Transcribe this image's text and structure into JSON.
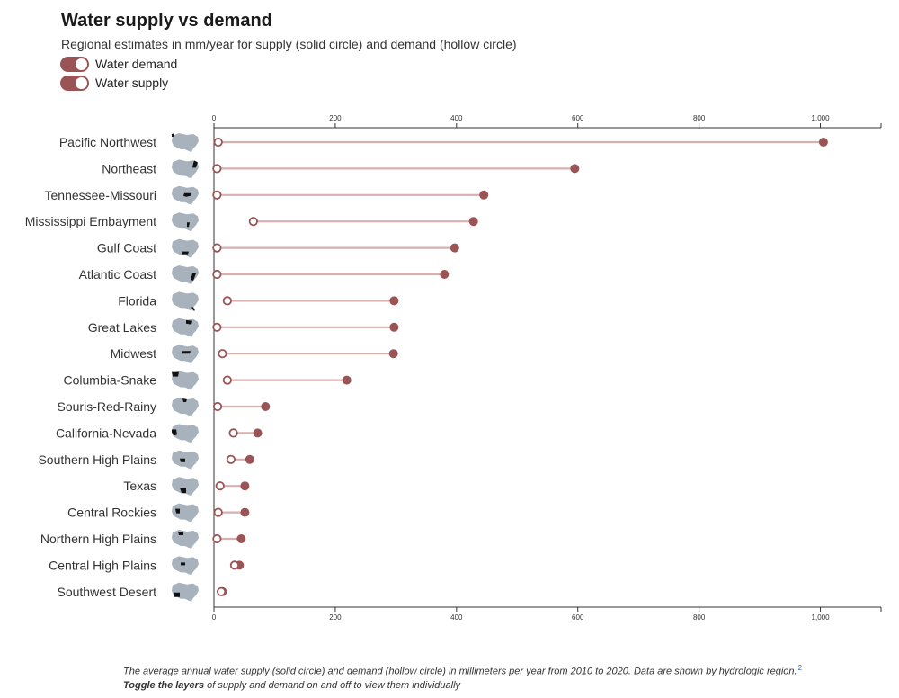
{
  "title": "Water supply vs demand",
  "subtitle": "Regional estimates in mm/year for supply (solid circle) and demand (hollow circle)",
  "toggles": [
    {
      "label": "Water demand",
      "on": true
    },
    {
      "label": "Water supply",
      "on": true
    }
  ],
  "colors": {
    "accent": "#9b5455",
    "connector": "#d6b1b0",
    "map": "#a7b2bd",
    "region": "#111111",
    "axis": "#333333"
  },
  "footnote": {
    "text": "The average annual water supply (solid circle) and demand (hollow circle) in millimeters per year from 2010 to 2020. Data are shown by hydrologic region.",
    "ref": "2",
    "bold": "Toggle the layers",
    "rest": " of supply and demand on and off to view them individually"
  },
  "chart_data": {
    "type": "dumbbell",
    "title": "Water supply vs demand",
    "xlabel": "",
    "ylabel": "",
    "xlim": [
      0,
      1100
    ],
    "ticks": [
      0,
      200,
      400,
      600,
      800,
      1000
    ],
    "tick_labels": [
      "0",
      "200",
      "400",
      "600",
      "800",
      "1,000"
    ],
    "series": [
      {
        "name": "Water supply",
        "marker": "solid circle"
      },
      {
        "name": "Water demand",
        "marker": "hollow circle"
      }
    ],
    "categories": [
      "Pacific Northwest",
      "Northeast",
      "Tennessee-Missouri",
      "Mississippi Embayment",
      "Gulf Coast",
      "Atlantic Coast",
      "Florida",
      "Great Lakes",
      "Midwest",
      "Columbia-Snake",
      "Souris-Red-Rainy",
      "California-Nevada",
      "Southern High Plains",
      "Texas",
      "Central Rockies",
      "Northern High Plains",
      "Central High Plains",
      "Southwest Desert"
    ],
    "supply": [
      1005,
      595,
      445,
      428,
      397,
      380,
      297,
      297,
      296,
      219,
      85,
      72,
      59,
      51,
      51,
      45,
      42,
      14
    ],
    "demand": [
      7,
      5,
      5,
      65,
      5,
      5,
      22,
      5,
      14,
      22,
      6,
      32,
      28,
      10,
      7,
      5,
      34,
      12
    ]
  }
}
